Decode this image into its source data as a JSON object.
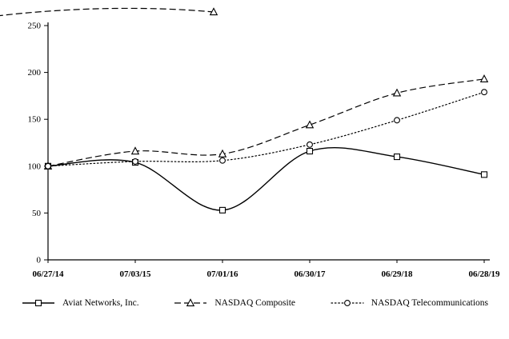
{
  "page": {
    "background": "#ffffff",
    "axis_color": "#000000",
    "text_color": "#000000"
  },
  "chart_data": {
    "type": "line",
    "categories": [
      "06/27/14",
      "07/03/15",
      "07/01/16",
      "06/30/17",
      "06/29/18",
      "06/28/19"
    ],
    "series": [
      {
        "name": "Aviat Networks, Inc.",
        "values": [
          100,
          104,
          53,
          116,
          110,
          91
        ],
        "line_style": "solid",
        "marker": "square",
        "color": "#000000"
      },
      {
        "name": "NASDAQ Composite",
        "values": [
          100,
          116,
          113,
          144,
          178,
          193
        ],
        "line_style": "dashed",
        "marker": "triangle",
        "color": "#000000"
      },
      {
        "name": "NASDAQ Telecommunications",
        "values": [
          100,
          105,
          106,
          123,
          149,
          179
        ],
        "line_style": "dotted",
        "marker": "circle",
        "color": "#000000"
      }
    ],
    "xlabel": "",
    "ylabel": "",
    "ylim": [
      0,
      250
    ],
    "yticks": [
      0,
      50,
      100,
      150,
      200,
      250
    ],
    "grid": false,
    "legend_position": "bottom"
  }
}
